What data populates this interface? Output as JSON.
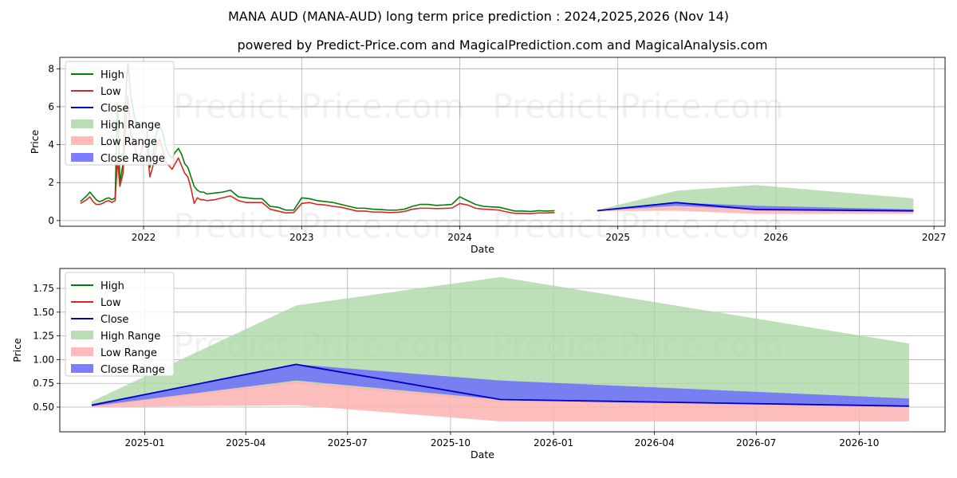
{
  "title": "MANA AUD (MANA-AUD) long term price prediction : 2024,2025,2026 (Nov 14)",
  "subtitle": "powered by Predict-Price.com and MagicalPrediction.com and MagicalAnalysis.com",
  "watermark": "Predict-Price.com",
  "colors": {
    "high": "#008000",
    "low": "#d62728",
    "close": "#0000cc",
    "high_range": "#a8d5a2",
    "low_range": "#ffb3b3",
    "close_range": "#6666ff"
  },
  "chart_data": [
    {
      "type": "line",
      "title": "MANA AUD (MANA-AUD) long term price prediction : 2024,2025,2026 (Nov 14)",
      "xlabel": "Date",
      "ylabel": "Price",
      "grid": true,
      "legend": "top-left",
      "xlim": [
        2021.47,
        2027.07
      ],
      "ylim": [
        -0.3,
        8.6
      ],
      "xticks": [
        {
          "v": 2022,
          "label": "2022"
        },
        {
          "v": 2023,
          "label": "2023"
        },
        {
          "v": 2024,
          "label": "2024"
        },
        {
          "v": 2025,
          "label": "2025"
        },
        {
          "v": 2026,
          "label": "2026"
        },
        {
          "v": 2027,
          "label": "2027"
        }
      ],
      "yticks": [
        {
          "v": 0,
          "label": "0"
        },
        {
          "v": 2,
          "label": "2"
        },
        {
          "v": 4,
          "label": "4"
        },
        {
          "v": 6,
          "label": "6"
        },
        {
          "v": 8,
          "label": "8"
        }
      ],
      "legend_entries": [
        "High",
        "Low",
        "Close",
        "High Range",
        "Low Range",
        "Close Range"
      ],
      "history_x": [
        2021.6,
        2021.62,
        2021.64,
        2021.66,
        2021.68,
        2021.7,
        2021.72,
        2021.74,
        2021.76,
        2021.78,
        2021.8,
        2021.82,
        2021.835,
        2021.85,
        2021.87,
        2021.88,
        2021.9,
        2021.92,
        2021.94,
        2021.96,
        2021.98,
        2022.0,
        2022.02,
        2022.04,
        2022.06,
        2022.08,
        2022.1,
        2022.12,
        2022.14,
        2022.16,
        2022.18,
        2022.2,
        2022.22,
        2022.24,
        2022.26,
        2022.28,
        2022.3,
        2022.32,
        2022.34,
        2022.36,
        2022.38,
        2022.4,
        2022.45,
        2022.5,
        2022.55,
        2022.6,
        2022.65,
        2022.7,
        2022.75,
        2022.8,
        2022.85,
        2022.9,
        2022.95,
        2023.0,
        2023.05,
        2023.1,
        2023.15,
        2023.2,
        2023.25,
        2023.3,
        2023.35,
        2023.4,
        2023.45,
        2023.5,
        2023.55,
        2023.6,
        2023.65,
        2023.7,
        2023.75,
        2023.8,
        2023.85,
        2023.9,
        2023.95,
        2024.0,
        2024.05,
        2024.1,
        2024.15,
        2024.2,
        2024.25,
        2024.3,
        2024.35,
        2024.4,
        2024.45,
        2024.5,
        2024.55,
        2024.6,
        2024.65,
        2024.7,
        2024.75,
        2024.8,
        2024.85,
        2024.87
      ],
      "history_high": [
        1.0,
        1.15,
        1.3,
        1.5,
        1.3,
        1.1,
        1.0,
        1.05,
        1.15,
        1.2,
        1.1,
        1.2,
        6.2,
        2.0,
        3.0,
        5.5,
        8.3,
        6.5,
        5.6,
        4.9,
        5.0,
        5.1,
        4.9,
        2.8,
        3.5,
        4.6,
        5.0,
        4.7,
        3.9,
        3.5,
        3.3,
        3.6,
        3.8,
        3.5,
        3.0,
        2.8,
        2.3,
        1.8,
        1.6,
        1.5,
        1.5,
        1.4,
        1.45,
        1.5,
        1.6,
        1.25,
        1.2,
        1.15,
        1.15,
        0.75,
        0.7,
        0.55,
        0.55,
        1.2,
        1.15,
        1.05,
        1.0,
        0.95,
        0.85,
        0.75,
        0.65,
        0.65,
        0.6,
        0.58,
        0.55,
        0.55,
        0.6,
        0.75,
        0.85,
        0.85,
        0.8,
        0.82,
        0.85,
        1.25,
        1.05,
        0.85,
        0.75,
        0.72,
        0.7,
        0.6,
        0.5,
        0.5,
        0.48,
        0.52,
        0.5,
        0.52
      ],
      "history_low": [
        0.9,
        1.0,
        1.1,
        1.25,
        1.0,
        0.85,
        0.85,
        0.9,
        1.0,
        1.05,
        0.95,
        1.05,
        3.2,
        1.8,
        2.5,
        4.0,
        6.6,
        4.5,
        4.2,
        3.2,
        3.5,
        4.1,
        3.9,
        2.3,
        2.9,
        3.9,
        4.3,
        3.8,
        3.1,
        2.9,
        2.7,
        3.0,
        3.3,
        2.9,
        2.5,
        2.3,
        1.7,
        0.9,
        1.2,
        1.1,
        1.1,
        1.05,
        1.1,
        1.2,
        1.3,
        1.05,
        0.95,
        0.95,
        0.95,
        0.6,
        0.5,
        0.4,
        0.42,
        0.9,
        0.95,
        0.85,
        0.82,
        0.75,
        0.7,
        0.6,
        0.5,
        0.5,
        0.45,
        0.45,
        0.42,
        0.43,
        0.48,
        0.6,
        0.65,
        0.65,
        0.63,
        0.64,
        0.66,
        0.9,
        0.82,
        0.65,
        0.6,
        0.58,
        0.55,
        0.45,
        0.38,
        0.38,
        0.37,
        0.4,
        0.4,
        0.42
      ],
      "forecast_x": [
        2024.87,
        2025.37,
        2025.87,
        2026.87
      ],
      "forecast_close": [
        0.52,
        0.95,
        0.58,
        0.51
      ],
      "high_range_upper": [
        0.56,
        1.57,
        1.87,
        1.17
      ],
      "high_range_lower": [
        0.5,
        0.75,
        0.55,
        0.5
      ],
      "low_range_upper": [
        0.52,
        0.77,
        0.58,
        0.51
      ],
      "low_range_lower": [
        0.5,
        0.52,
        0.35,
        0.35
      ],
      "close_range_upper": [
        0.53,
        0.95,
        0.78,
        0.59
      ],
      "close_range_lower": [
        0.51,
        0.78,
        0.58,
        0.51
      ]
    },
    {
      "type": "line",
      "title": "",
      "xlabel": "Date",
      "ylabel": "Price",
      "grid": true,
      "legend": "top-left",
      "xlim": [
        2024.792,
        2026.958
      ],
      "ylim": [
        0.24,
        1.96
      ],
      "xticks": [
        {
          "v": 2025.0,
          "label": "2025-01"
        },
        {
          "v": 2025.247,
          "label": "2025-04"
        },
        {
          "v": 2025.496,
          "label": "2025-07"
        },
        {
          "v": 2025.748,
          "label": "2025-10"
        },
        {
          "v": 2026.0,
          "label": "2026-01"
        },
        {
          "v": 2026.247,
          "label": "2026-04"
        },
        {
          "v": 2026.496,
          "label": "2026-07"
        },
        {
          "v": 2026.748,
          "label": "2026-10"
        }
      ],
      "yticks": [
        {
          "v": 0.5,
          "label": "0.50"
        },
        {
          "v": 0.75,
          "label": "0.75"
        },
        {
          "v": 1.0,
          "label": "1.00"
        },
        {
          "v": 1.25,
          "label": "1.25"
        },
        {
          "v": 1.5,
          "label": "1.50"
        },
        {
          "v": 1.75,
          "label": "1.75"
        }
      ],
      "legend_entries": [
        "High",
        "Low",
        "Close",
        "High Range",
        "Low Range",
        "Close Range"
      ],
      "forecast_x": [
        2024.87,
        2025.37,
        2025.87,
        2026.87
      ],
      "forecast_close": [
        0.52,
        0.95,
        0.58,
        0.51
      ],
      "high_range_upper": [
        0.56,
        1.57,
        1.87,
        1.17
      ],
      "high_range_lower": [
        0.5,
        0.75,
        0.55,
        0.5
      ],
      "low_range_upper": [
        0.52,
        0.77,
        0.58,
        0.51
      ],
      "low_range_lower": [
        0.5,
        0.52,
        0.35,
        0.35
      ],
      "close_range_upper": [
        0.53,
        0.95,
        0.78,
        0.59
      ],
      "close_range_lower": [
        0.51,
        0.78,
        0.58,
        0.51
      ]
    }
  ]
}
